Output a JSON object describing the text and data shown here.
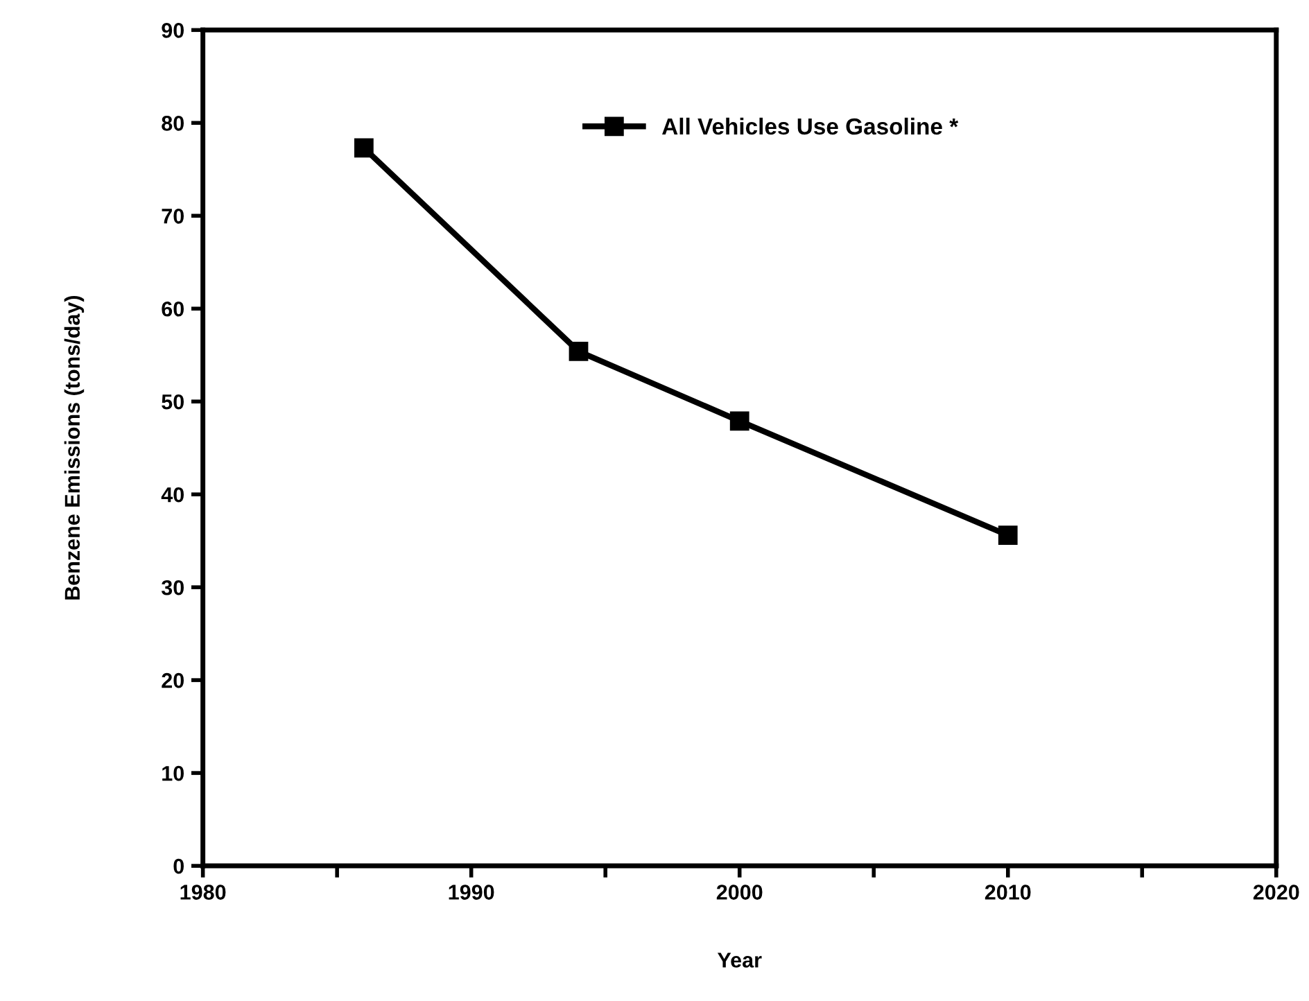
{
  "chart_data": {
    "type": "line",
    "xlabel": "Year",
    "ylabel": "Benzene Emissions (tons/day)",
    "x": [
      1986,
      1994,
      2000,
      2010
    ],
    "series": [
      {
        "name": "All Vehicles Use Gasoline *",
        "color": "#000000",
        "values": [
          77.3,
          55.4,
          47.9,
          35.6
        ]
      }
    ],
    "xlim": [
      1980,
      2020
    ],
    "xticks": [
      1980,
      {
        "value": 1985,
        "label": null
      },
      1990,
      {
        "value": 1995,
        "label": null
      },
      2000,
      {
        "value": 2005,
        "label": null
      },
      2010,
      {
        "value": 2015,
        "label": null
      },
      2020
    ],
    "ylim": [
      0,
      90
    ],
    "yticks": [
      0,
      10,
      20,
      30,
      40,
      50,
      60,
      70,
      80,
      90
    ],
    "grid": false,
    "legend": "top",
    "marker": "square",
    "line_style": "solid"
  }
}
